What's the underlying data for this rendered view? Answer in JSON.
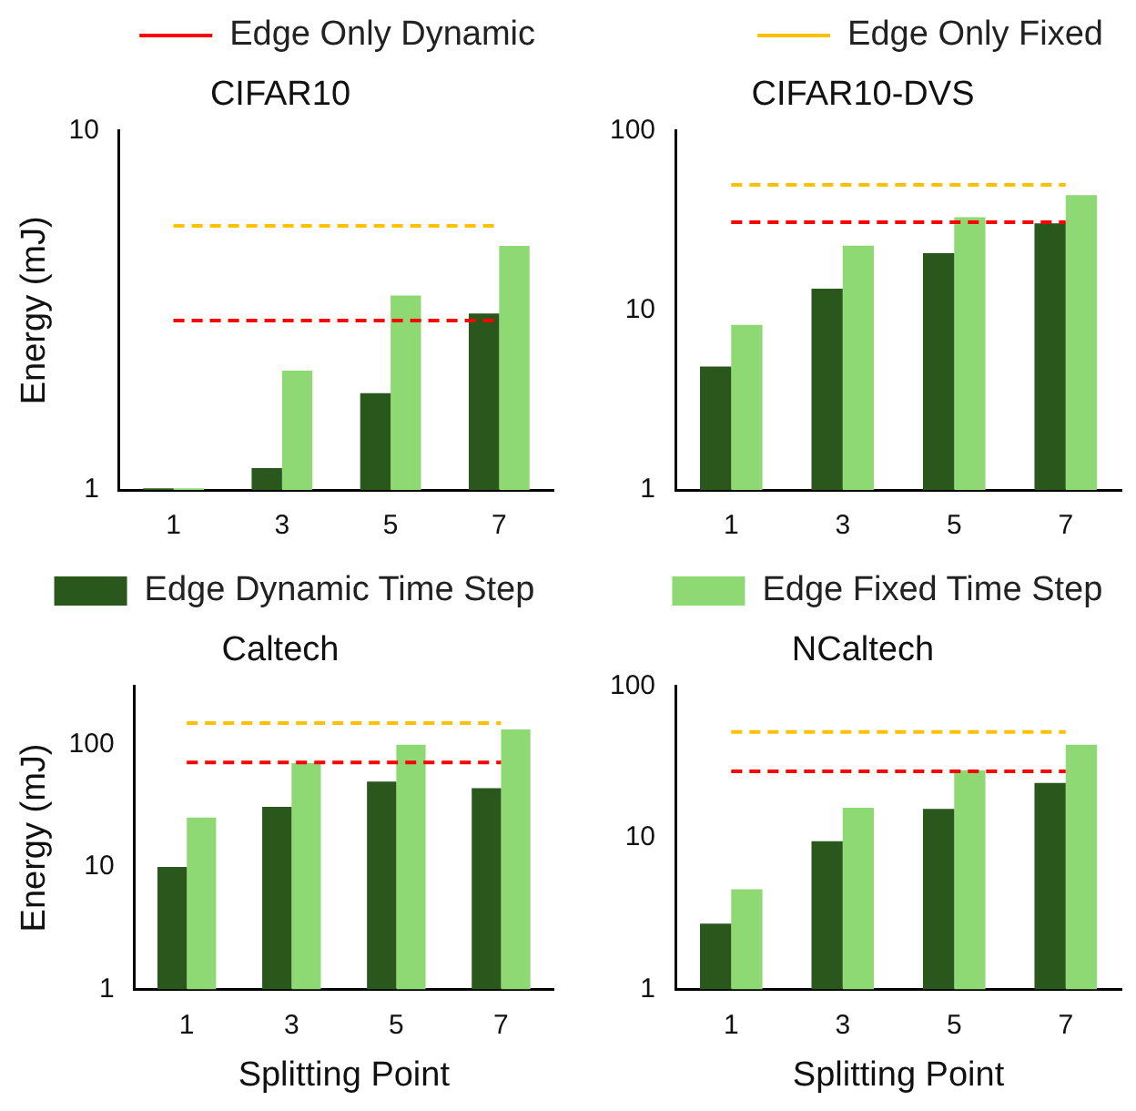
{
  "chart_data": [
    {
      "type": "bar",
      "title": "CIFAR10",
      "ylabel": "Energy (mJ)",
      "categories": [
        "1",
        "3",
        "5",
        "7"
      ],
      "log": true,
      "ylim": [
        1,
        10
      ],
      "yticks": [
        1,
        10
      ],
      "grid": false,
      "legend": "top",
      "marker": "none",
      "series": [
        {
          "name": "Edge Only Dynamic",
          "type": "line",
          "line_style": "dashed",
          "color": "#ff0000",
          "values": [
            2.96,
            2.96,
            2.96,
            2.96
          ]
        },
        {
          "type": "line",
          "line_style": "dashed",
          "color": "#ffc000",
          "values": [
            5.44,
            5.44,
            5.44,
            5.44
          ]
        },
        {
          "color": "#2a571b",
          "values": [
            1.01,
            1.15,
            1.86,
            3.1
          ]
        },
        {
          "color": "#8fd974",
          "values": [
            1.01,
            2.15,
            3.48,
            4.78
          ]
        }
      ]
    },
    {
      "type": "bar",
      "title": "CIFAR10-DVS",
      "categories": [
        "1",
        "3",
        "5",
        "7"
      ],
      "log": true,
      "ylim": [
        1,
        100
      ],
      "yticks": [
        1,
        10,
        100
      ],
      "grid": false,
      "legend": "top",
      "marker": "none",
      "series": [
        {
          "type": "line",
          "line_style": "dashed",
          "color": "#ff0000",
          "values": [
            31,
            31,
            31,
            31
          ]
        },
        {
          "name": "Edge Only Fixed",
          "type": "line",
          "line_style": "dashed",
          "color": "#ffc000",
          "values": [
            50,
            50,
            50,
            50
          ]
        },
        {
          "color": "#2a571b",
          "values": [
            4.87,
            13.2,
            20.8,
            30.5
          ]
        },
        {
          "color": "#8fd974",
          "values": [
            8.3,
            22.9,
            33,
            43.8
          ]
        }
      ]
    },
    {
      "type": "bar",
      "title": "Caltech",
      "ylabel": "Energy (mJ)",
      "xlabel": "Splitting Point",
      "categories": [
        "1",
        "3",
        "5",
        "7"
      ],
      "log": true,
      "ylim": [
        1,
        300
      ],
      "yticks": [
        1,
        10,
        100
      ],
      "grid": false,
      "legend": "top",
      "marker": "none",
      "series": [
        {
          "type": "line",
          "line_style": "dashed",
          "color": "#ff0000",
          "values": [
            71.5,
            71.5,
            71.5,
            71.5
          ]
        },
        {
          "type": "line",
          "line_style": "dashed",
          "color": "#ffc000",
          "values": [
            150,
            150,
            150,
            150
          ]
        },
        {
          "name": "Edge Dynamic Time Step",
          "color": "#2a571b",
          "values": [
            10,
            31,
            50,
            44
          ]
        },
        {
          "color": "#8fd974",
          "values": [
            25.4,
            70.6,
            100,
            133
          ]
        }
      ]
    },
    {
      "type": "bar",
      "title": "NCaltech",
      "xlabel": "Splitting Point",
      "categories": [
        "1",
        "3",
        "5",
        "7"
      ],
      "log": true,
      "ylim": [
        1,
        100
      ],
      "yticks": [
        1,
        10,
        100
      ],
      "grid": false,
      "legend": "top",
      "marker": "none",
      "series": [
        {
          "type": "line",
          "line_style": "dashed",
          "color": "#ff0000",
          "values": [
            27.5,
            27.5,
            27.5,
            27.5
          ]
        },
        {
          "type": "line",
          "line_style": "dashed",
          "color": "#ffc000",
          "values": [
            50,
            50,
            50,
            50
          ]
        },
        {
          "color": "#2a571b",
          "values": [
            2.71,
            9.5,
            15.5,
            23
          ]
        },
        {
          "name": "Edge Fixed Time Step",
          "color": "#8fd974",
          "values": [
            4.58,
            15.8,
            27.8,
            41.2
          ]
        }
      ]
    }
  ]
}
